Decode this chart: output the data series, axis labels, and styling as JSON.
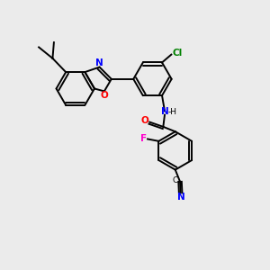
{
  "bg_color": "#ebebeb",
  "bond_color": "#000000",
  "atom_colors": {
    "Cl": "#008000",
    "N": "#0000ff",
    "O": "#ff0000",
    "F": "#ff00cc"
  },
  "lw": 1.4,
  "ring_r": 0.72
}
